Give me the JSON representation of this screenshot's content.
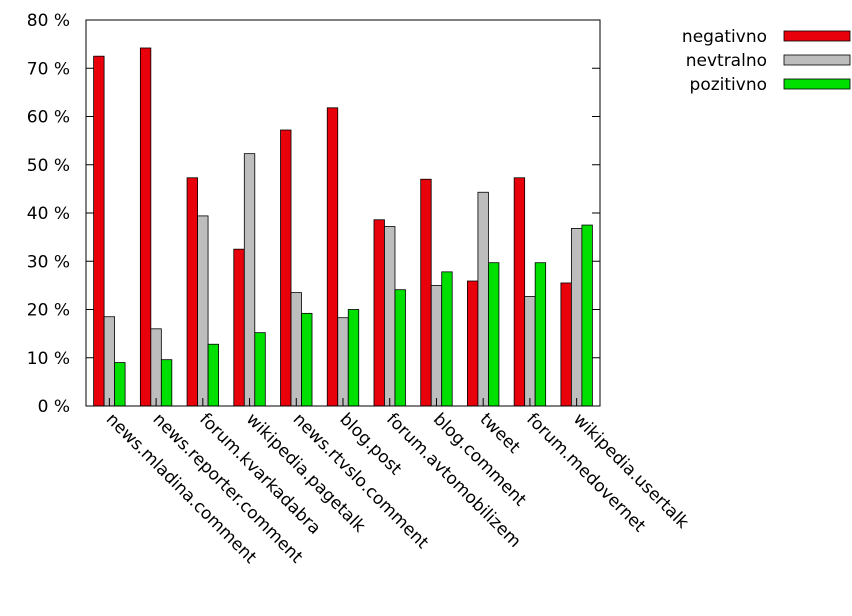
{
  "chart_data": {
    "type": "bar",
    "categories": [
      "news.mladina.comment",
      "news.reporter.comment",
      "forum.kvarkadabra",
      "wikipedia.pagetalk",
      "news.rtvslo.comment",
      "blog.post",
      "forum.avtomobilizem",
      "blog.comment",
      "tweet",
      "forum.medovernet",
      "wikipedia.usertalk"
    ],
    "series": [
      {
        "name": "negativno",
        "color": "#e8000b",
        "values": [
          72.5,
          74.2,
          47.3,
          32.5,
          57.2,
          61.8,
          38.6,
          47.0,
          25.9,
          47.3,
          25.5
        ]
      },
      {
        "name": "nevtralno",
        "color": "#bdbdbd",
        "values": [
          18.5,
          16.0,
          39.4,
          52.3,
          23.5,
          18.3,
          37.2,
          25.0,
          44.3,
          22.7,
          36.8
        ]
      },
      {
        "name": "pozitivno",
        "color": "#00e000",
        "values": [
          9.0,
          9.6,
          12.8,
          15.2,
          19.2,
          20.0,
          24.1,
          27.8,
          29.7,
          29.7,
          37.5
        ]
      }
    ],
    "y_ticks": [
      "0 %",
      "10 %",
      "20 %",
      "30 %",
      "40 %",
      "50 %",
      "60 %",
      "70 %",
      "80 %"
    ],
    "ylim": [
      0,
      80
    ],
    "legend_position": "top-right",
    "grid": false
  }
}
